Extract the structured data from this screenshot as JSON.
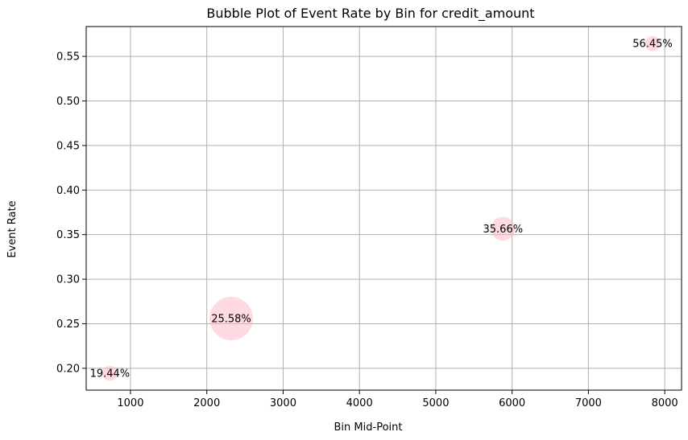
{
  "chart_data": {
    "type": "scatter",
    "title": "Bubble Plot of Event Rate by Bin for credit_amount",
    "xlabel": "Bin Mid-Point",
    "ylabel": "Event Rate",
    "xlim": [
      420,
      8220
    ],
    "ylim": [
      0.1755,
      0.5835
    ],
    "xticks": [
      1000,
      2000,
      3000,
      4000,
      5000,
      6000,
      7000,
      8000
    ],
    "yticks": [
      0.2,
      0.25,
      0.3,
      0.35,
      0.4,
      0.45,
      0.5,
      0.55
    ],
    "xtick_labels": [
      "1000",
      "2000",
      "3000",
      "4000",
      "5000",
      "6000",
      "7000",
      "8000"
    ],
    "ytick_labels": [
      "0.20",
      "0.25",
      "0.30",
      "0.35",
      "0.40",
      "0.45",
      "0.50",
      "0.55"
    ],
    "grid": true,
    "points": [
      {
        "x": 730,
        "y": 0.1944,
        "size": 0.12,
        "label": "19.44%"
      },
      {
        "x": 2320,
        "y": 0.2558,
        "size": 1.0,
        "label": "25.58%"
      },
      {
        "x": 5880,
        "y": 0.3566,
        "size": 0.3,
        "label": "35.66%"
      },
      {
        "x": 7840,
        "y": 0.5645,
        "size": 0.12,
        "label": "56.45%"
      }
    ],
    "colors": {
      "bubble_fill": "#ffb6c1",
      "bubble_opacity": 0.5,
      "grid": "#b0b0b0",
      "axes": "#000000"
    }
  }
}
